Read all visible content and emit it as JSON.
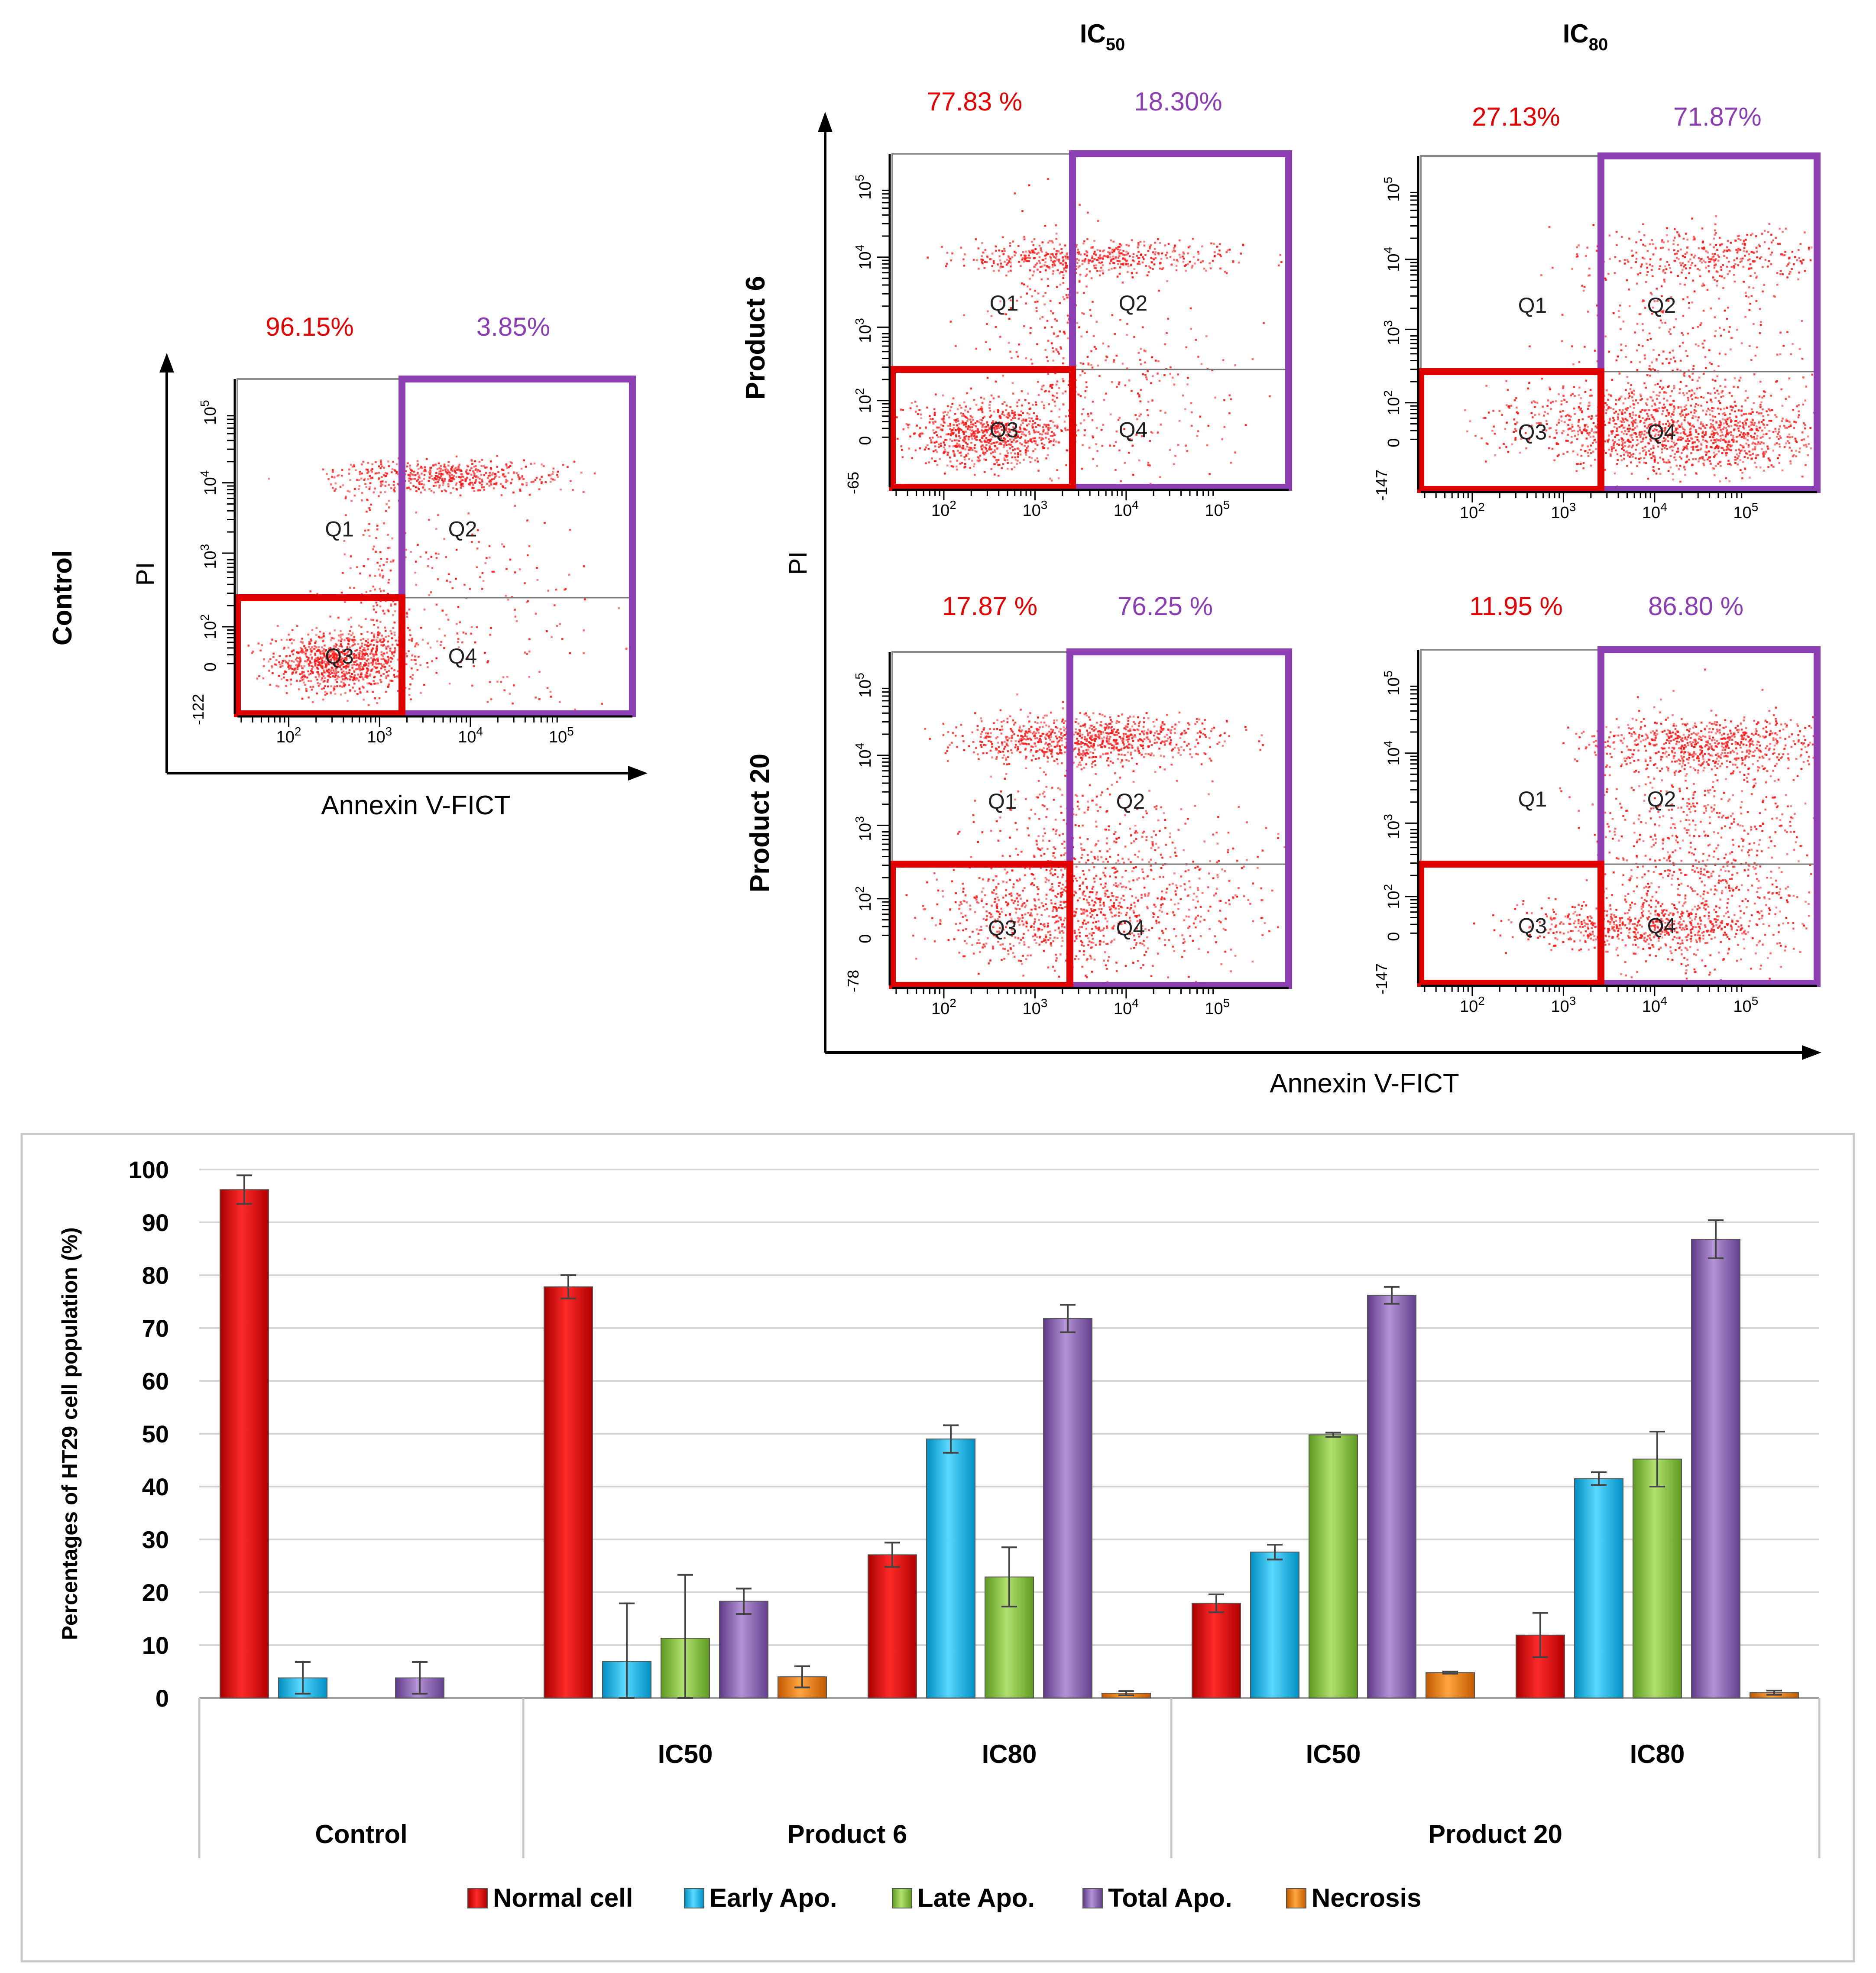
{
  "flow": {
    "column_headers": [
      {
        "base": "IC",
        "sub": "50"
      },
      {
        "base": "IC",
        "sub": "80"
      }
    ],
    "row_labels": [
      "Control",
      "Product 6",
      "Product 20"
    ],
    "axis_y": "PI",
    "axis_x": "Annexin V-FICT",
    "quadrants": [
      "Q1",
      "Q2",
      "Q3",
      "Q4"
    ],
    "x_ticks": [
      {
        "base": "10",
        "exp": "2"
      },
      {
        "base": "10",
        "exp": "3"
      },
      {
        "base": "10",
        "exp": "4"
      },
      {
        "base": "10",
        "exp": "5"
      }
    ],
    "y_ticks": [
      {
        "base": "10",
        "exp": "2"
      },
      {
        "base": "10",
        "exp": "3"
      },
      {
        "base": "10",
        "exp": "4"
      },
      {
        "base": "10",
        "exp": "5"
      }
    ],
    "zero_tick": "0",
    "panels": [
      {
        "id": "control",
        "normal": "96.15%",
        "apoptotic": "3.85%",
        "min_label": "-122"
      },
      {
        "id": "p6-ic50",
        "normal": "77.83 %",
        "apoptotic": "18.30%",
        "min_label": "-65"
      },
      {
        "id": "p6-ic80",
        "normal": "27.13%",
        "apoptotic": "71.87%",
        "min_label": "-147"
      },
      {
        "id": "p20-ic50",
        "normal": "17.87 %",
        "apoptotic": "76.25 %",
        "min_label": "-78"
      },
      {
        "id": "p20-ic80",
        "normal": "11.95 %",
        "apoptotic": "86.80 %",
        "min_label": "-147"
      }
    ]
  },
  "chart_data": {
    "type": "bar",
    "title": "",
    "ylabel": "Percentages of  HT29 cell population (%)",
    "xlabel": "",
    "ylim": [
      0,
      100
    ],
    "yticks": [
      0,
      10,
      20,
      30,
      40,
      50,
      60,
      70,
      80,
      90,
      100
    ],
    "grid": true,
    "legend_position": "bottom",
    "groups": [
      {
        "label": "Control",
        "subgroups": [
          ""
        ]
      },
      {
        "label": "Product 6",
        "subgroups": [
          "IC50",
          "IC80"
        ]
      },
      {
        "label": "Product 20",
        "subgroups": [
          "IC50",
          "IC80"
        ]
      }
    ],
    "categories": [
      "Control",
      "Product 6 IC50",
      "Product 6 IC80",
      "Product 20 IC50",
      "Product 20 IC80"
    ],
    "series": [
      {
        "name": "Normal cell",
        "color": "#e20000",
        "values": [
          96.2,
          77.8,
          27.1,
          17.9,
          11.9
        ],
        "errors": [
          2.7,
          2.2,
          2.3,
          1.7,
          4.2
        ]
      },
      {
        "name": "Early Apo.",
        "color": "#00c0f0",
        "values": [
          3.8,
          6.9,
          49.0,
          27.6,
          41.5
        ],
        "errors": [
          3.0,
          11.0,
          2.6,
          1.4,
          1.2
        ]
      },
      {
        "name": "Late Apo.",
        "color": "#86c440",
        "values": [
          0,
          11.3,
          22.9,
          49.8,
          45.2
        ],
        "errors": [
          0,
          12.0,
          5.6,
          0.4,
          5.2
        ]
      },
      {
        "name": "Total Apo.",
        "color": "#8b5db3",
        "values": [
          3.8,
          18.3,
          71.8,
          76.2,
          86.8
        ],
        "errors": [
          3.0,
          2.4,
          2.6,
          1.6,
          3.6
        ]
      },
      {
        "name": "Necrosis",
        "color": "#f07800",
        "values": [
          0,
          4.0,
          0.9,
          4.8,
          1.0
        ],
        "errors": [
          0,
          2.0,
          0.4,
          0.2,
          0.4
        ]
      }
    ]
  }
}
